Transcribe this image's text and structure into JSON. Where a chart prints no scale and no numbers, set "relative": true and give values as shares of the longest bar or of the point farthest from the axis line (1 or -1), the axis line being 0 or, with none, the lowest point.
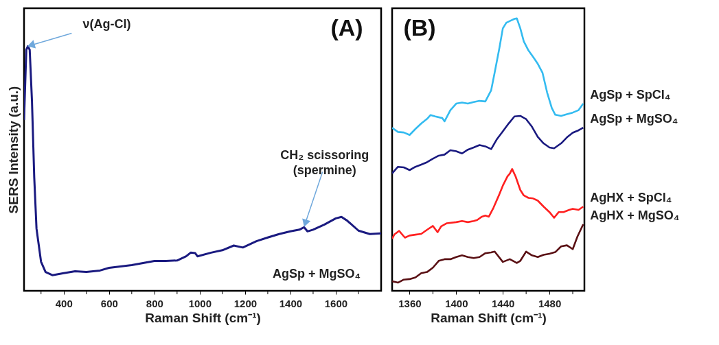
{
  "chart_data": [
    {
      "type": "line",
      "title": "(A)",
      "xlabel": "Raman Shift (cm⁻¹)",
      "ylabel": "SERS Intensity (a.u.)",
      "relative": true,
      "grid": false,
      "xlim": [
        225,
        1800
      ],
      "xticks": [
        {
          "value": 300,
          "label": null
        },
        400,
        {
          "value": 500,
          "label": null
        },
        600,
        {
          "value": 700,
          "label": null
        },
        800,
        {
          "value": 900,
          "label": null
        },
        1000,
        {
          "value": 1100,
          "label": null
        },
        1200,
        {
          "value": 1300,
          "label": null
        },
        1400,
        {
          "value": 1500,
          "label": null
        },
        1600,
        {
          "value": 1700,
          "label": null
        }
      ],
      "series": [
        {
          "name": "AgSp + MgSO₄",
          "color": "#1a1a80",
          "x": [
            225,
            235,
            242,
            250,
            260,
            270,
            280,
            300,
            320,
            350,
            400,
            450,
            500,
            560,
            600,
            700,
            800,
            850,
            900,
            940,
            960,
            980,
            990,
            1050,
            1100,
            1150,
            1190,
            1250,
            1300,
            1350,
            1400,
            1440,
            1460,
            1475,
            1500,
            1550,
            1600,
            1625,
            1650,
            1700,
            1750,
            1800
          ],
          "values": [
            0.699,
            0.985,
            1.0,
            0.985,
            0.776,
            0.464,
            0.254,
            0.119,
            0.077,
            0.064,
            0.072,
            0.08,
            0.077,
            0.083,
            0.094,
            0.105,
            0.122,
            0.122,
            0.124,
            0.141,
            0.156,
            0.154,
            0.141,
            0.156,
            0.166,
            0.185,
            0.177,
            0.203,
            0.218,
            0.232,
            0.243,
            0.25,
            0.26,
            0.243,
            0.25,
            0.271,
            0.296,
            0.302,
            0.287,
            0.246,
            0.232,
            0.235
          ]
        }
      ],
      "annotations": [
        {
          "text": "ν(Ag-Cl)",
          "x": 242,
          "y": 1.0
        },
        {
          "text": "CH₂ scissoring (spermine)",
          "x": 1460,
          "y": 0.26
        }
      ]
    },
    {
      "type": "line",
      "title": "(B)",
      "xlabel": "Raman Shift (cm⁻¹)",
      "relative": true,
      "grid": false,
      "xlim": [
        1345,
        1510
      ],
      "xticks": [
        1360,
        {
          "value": 1380,
          "label": null
        },
        1400,
        {
          "value": 1420,
          "label": null
        },
        1440,
        {
          "value": 1460,
          "label": null
        },
        1480,
        {
          "value": 1500,
          "label": null
        }
      ],
      "series": [
        {
          "name": "AgSp + SpCl₄",
          "color": "#33bbf0",
          "x": [
            1345,
            1350,
            1355,
            1360,
            1365,
            1370,
            1375,
            1378,
            1382,
            1388,
            1390,
            1395,
            1400,
            1405,
            1410,
            1415,
            1420,
            1425,
            1430,
            1433,
            1437,
            1440,
            1443,
            1447,
            1450,
            1452,
            1455,
            1458,
            1462,
            1466,
            1470,
            1474,
            1478,
            1482,
            1485,
            1490,
            1495,
            1500,
            1505,
            1509
          ],
          "values": [
            0.598,
            0.583,
            0.581,
            0.572,
            0.594,
            0.614,
            0.631,
            0.645,
            0.64,
            0.634,
            0.622,
            0.663,
            0.687,
            0.691,
            0.687,
            0.693,
            0.697,
            0.695,
            0.736,
            0.801,
            0.89,
            0.963,
            0.984,
            0.992,
            0.998,
            1.0,
            0.963,
            0.915,
            0.882,
            0.858,
            0.833,
            0.801,
            0.728,
            0.671,
            0.646,
            0.642,
            0.648,
            0.654,
            0.663,
            0.687
          ]
        },
        {
          "name": "AgSp + MgSO₄",
          "color": "#1a1a80",
          "x": [
            1345,
            1350,
            1355,
            1360,
            1365,
            1370,
            1375,
            1380,
            1385,
            1390,
            1395,
            1400,
            1405,
            1410,
            1415,
            1420,
            1425,
            1430,
            1435,
            1440,
            1445,
            1450,
            1455,
            1460,
            1465,
            1470,
            1475,
            1480,
            1484,
            1490,
            1495,
            1500,
            1505,
            1509
          ],
          "values": [
            0.431,
            0.455,
            0.453,
            0.443,
            0.455,
            0.463,
            0.472,
            0.485,
            0.496,
            0.5,
            0.516,
            0.512,
            0.504,
            0.518,
            0.526,
            0.535,
            0.53,
            0.52,
            0.557,
            0.585,
            0.614,
            0.64,
            0.642,
            0.63,
            0.602,
            0.565,
            0.541,
            0.526,
            0.523,
            0.541,
            0.563,
            0.58,
            0.589,
            0.599
          ]
        },
        {
          "name": "AgHX + SpCl₄",
          "color": "#ff2020",
          "x": [
            1345,
            1347,
            1351,
            1356,
            1360,
            1365,
            1370,
            1375,
            1380,
            1384,
            1387,
            1392,
            1400,
            1405,
            1410,
            1415,
            1418,
            1422,
            1425,
            1428,
            1432,
            1437,
            1440,
            1444,
            1446,
            1448,
            1451,
            1455,
            1458,
            1462,
            1466,
            1470,
            1475,
            1480,
            1484,
            1488,
            1492,
            1497,
            1500,
            1505,
            1509
          ],
          "values": [
            0.191,
            0.207,
            0.22,
            0.195,
            0.203,
            0.206,
            0.209,
            0.224,
            0.238,
            0.215,
            0.236,
            0.248,
            0.252,
            0.256,
            0.252,
            0.256,
            0.26,
            0.272,
            0.276,
            0.272,
            0.305,
            0.354,
            0.386,
            0.42,
            0.43,
            0.447,
            0.419,
            0.37,
            0.35,
            0.341,
            0.339,
            0.331,
            0.309,
            0.289,
            0.268,
            0.289,
            0.289,
            0.297,
            0.301,
            0.297,
            0.309
          ]
        },
        {
          "name": "AgHX + MgSO₄",
          "color": "#5a1014",
          "x": [
            1345,
            1350,
            1355,
            1360,
            1365,
            1370,
            1375,
            1380,
            1385,
            1390,
            1395,
            1400,
            1405,
            1410,
            1415,
            1420,
            1425,
            1430,
            1433,
            1440,
            1446,
            1452,
            1455,
            1460,
            1465,
            1470,
            1475,
            1480,
            1485,
            1490,
            1495,
            1500,
            1504,
            1509
          ],
          "values": [
            0.035,
            0.03,
            0.041,
            0.043,
            0.049,
            0.065,
            0.069,
            0.085,
            0.11,
            0.116,
            0.116,
            0.124,
            0.13,
            0.124,
            0.12,
            0.124,
            0.138,
            0.141,
            0.144,
            0.106,
            0.116,
            0.102,
            0.11,
            0.144,
            0.13,
            0.124,
            0.132,
            0.136,
            0.142,
            0.163,
            0.167,
            0.153,
            0.199,
            0.244
          ]
        }
      ]
    }
  ]
}
